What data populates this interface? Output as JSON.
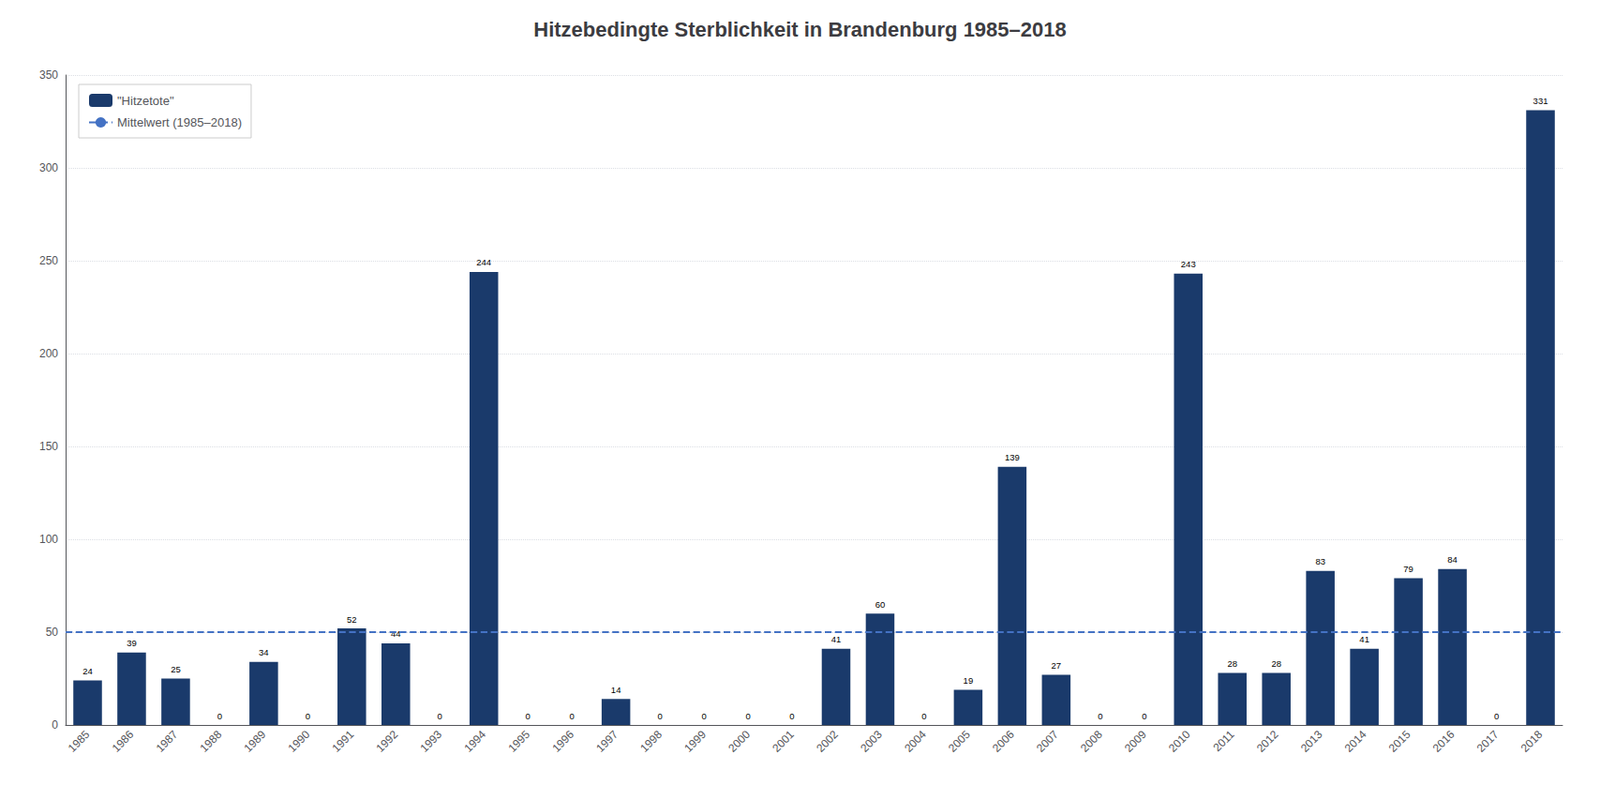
{
  "chart_data": {
    "type": "bar",
    "title": "Hitzebedingte Sterblichkeit in Brandenburg 1985–2018",
    "categories": [
      "1985",
      "1986",
      "1987",
      "1988",
      "1989",
      "1990",
      "1991",
      "1992",
      "1993",
      "1994",
      "1995",
      "1996",
      "1997",
      "1998",
      "1999",
      "2000",
      "2001",
      "2002",
      "2003",
      "2004",
      "2005",
      "2006",
      "2007",
      "2008",
      "2009",
      "2010",
      "2011",
      "2012",
      "2013",
      "2014",
      "2015",
      "2016",
      "2017",
      "2018"
    ],
    "series": [
      {
        "name": "\"Hitzetote\"",
        "type": "bar",
        "color": "#1a3a6b",
        "values": [
          24,
          39,
          25,
          0,
          34,
          0,
          52,
          44,
          0,
          244,
          0,
          0,
          14,
          0,
          0,
          0,
          0,
          41,
          60,
          0,
          19,
          139,
          27,
          0,
          0,
          243,
          28,
          28,
          83,
          41,
          79,
          84,
          0,
          331
        ]
      }
    ],
    "mean_line": {
      "name": "Mittelwert (1985–2018)",
      "value": 50,
      "color": "#4472c4",
      "line_style": "dashed"
    },
    "ylim": [
      0,
      350
    ],
    "yticks": [
      0,
      50,
      100,
      150,
      200,
      250,
      300,
      350
    ],
    "grid": true,
    "legend": "upper left",
    "data_labels": true
  }
}
